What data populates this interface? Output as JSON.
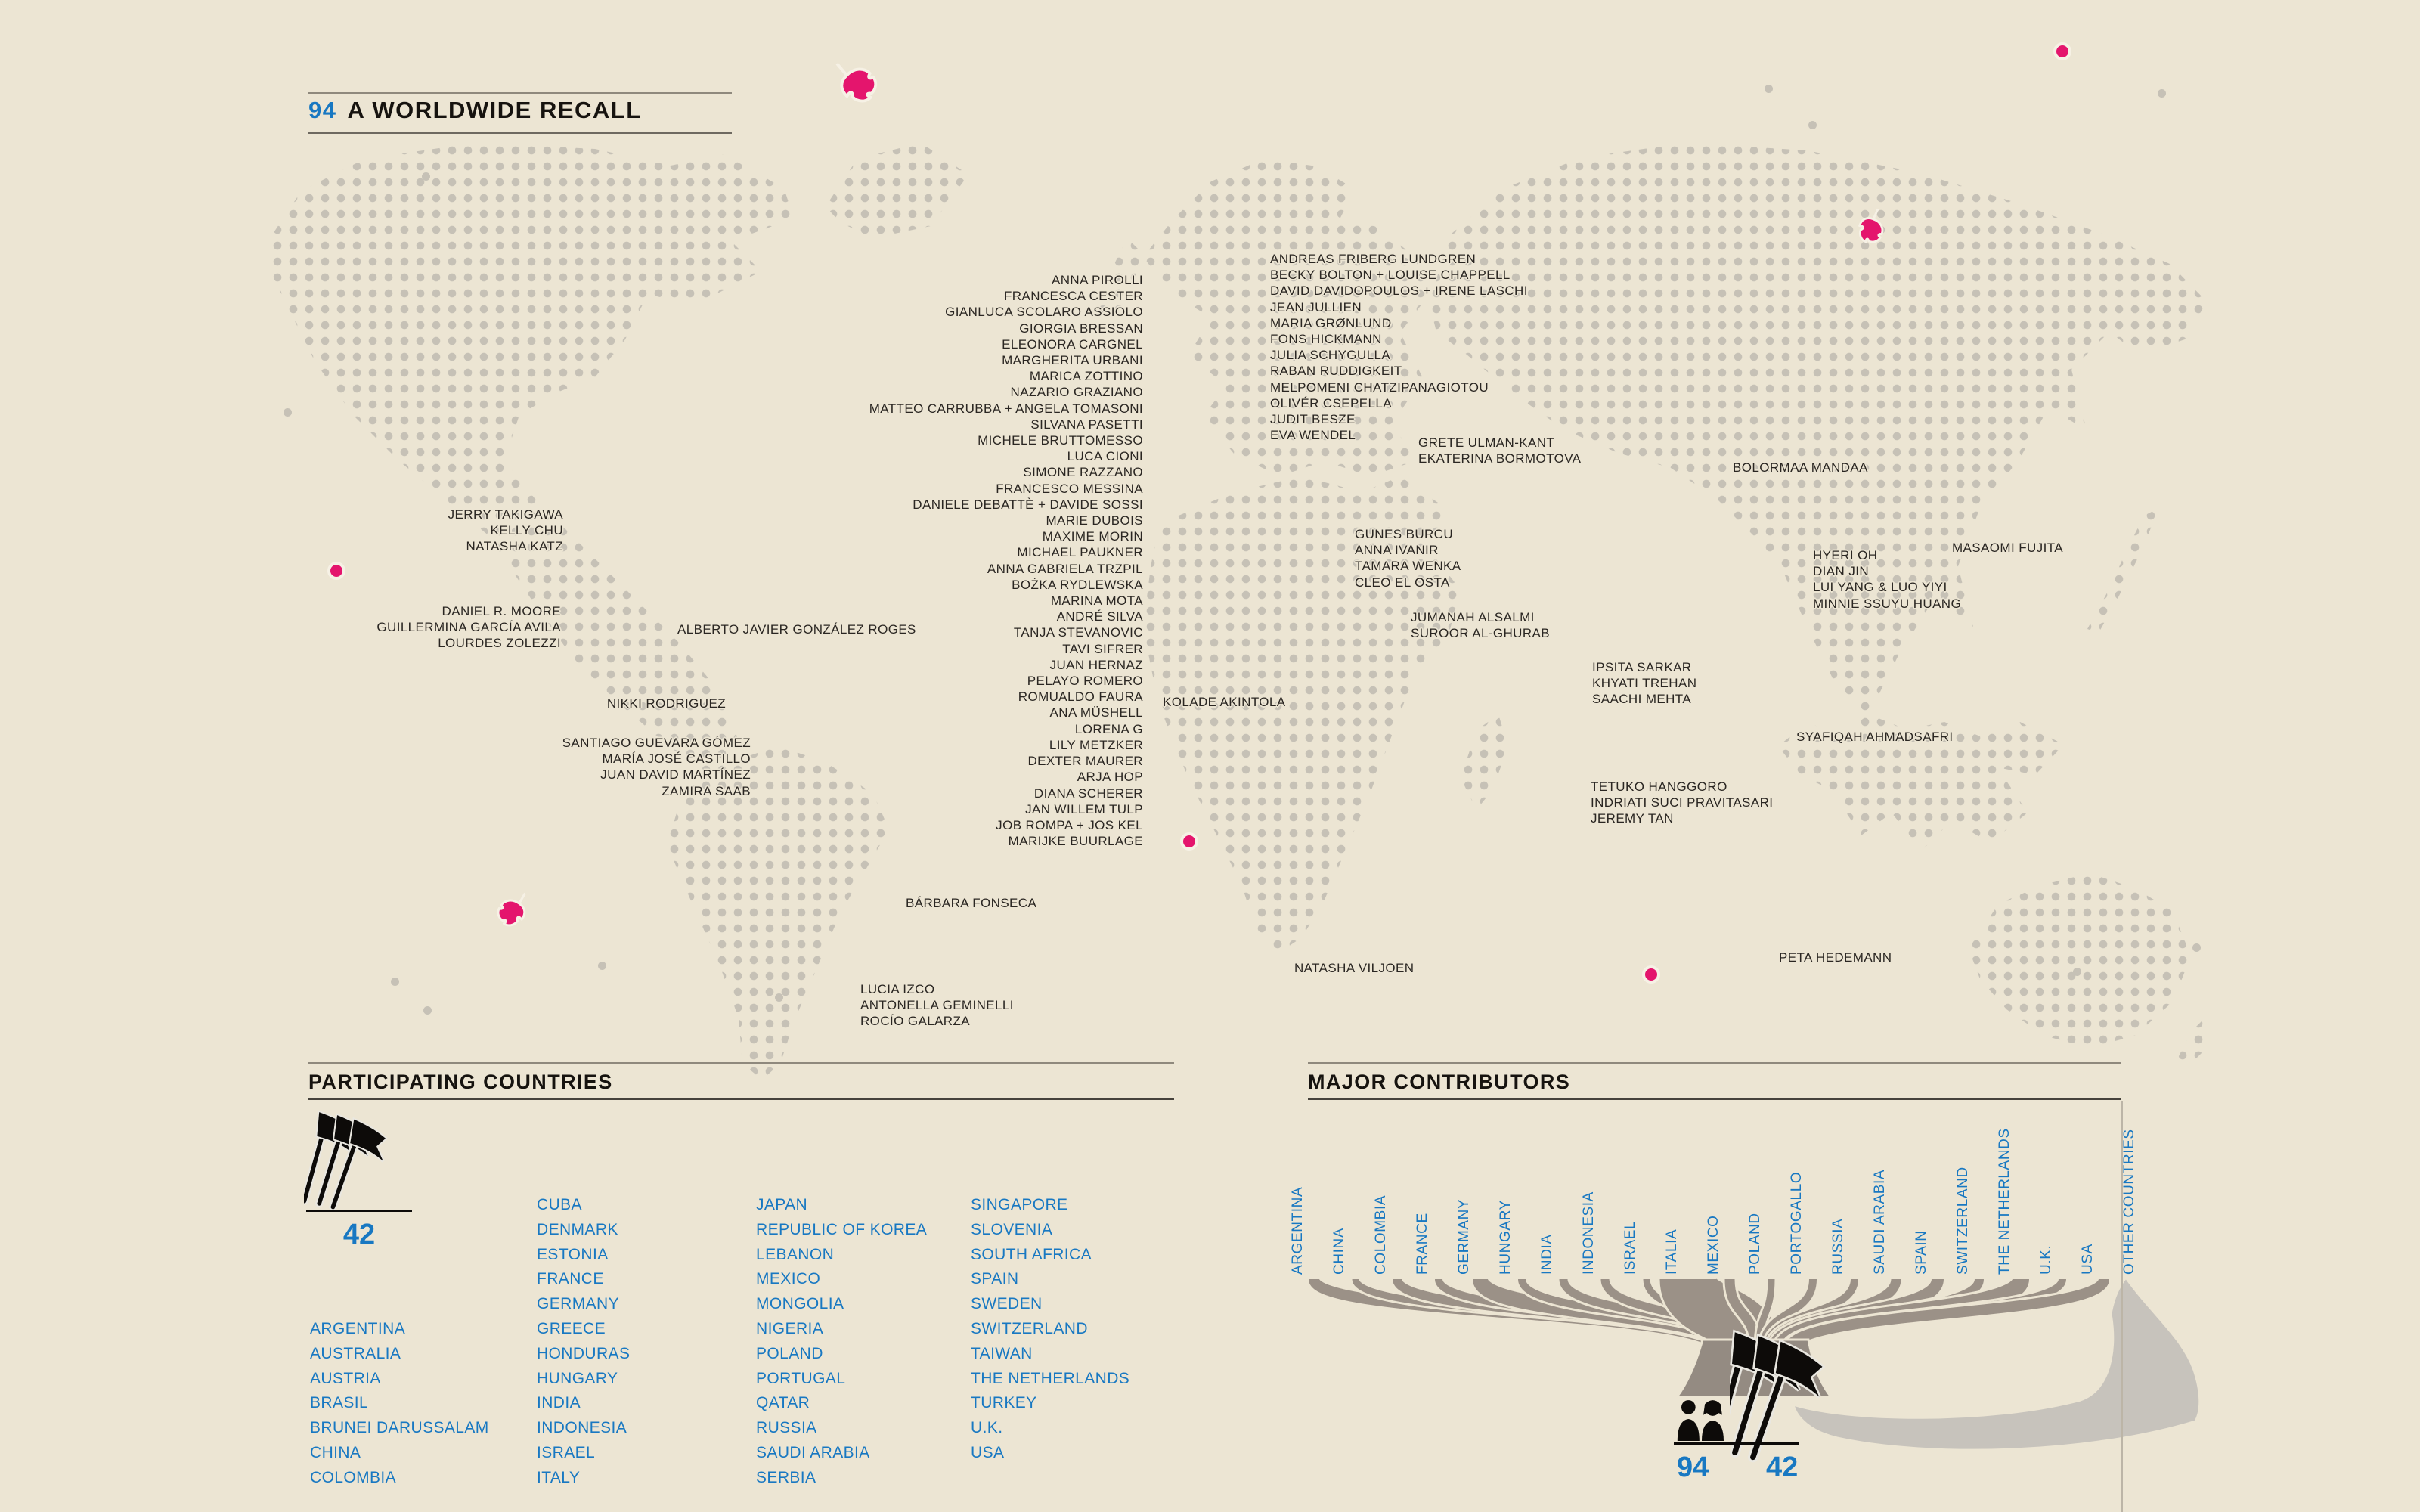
{
  "title": {
    "number": "94",
    "text": "A WORLDWIDE RECALL"
  },
  "colors": {
    "background": "#ece5d3",
    "dot_gray": "#c6c1b6",
    "accent_blue": "#1878c2",
    "accent_magenta": "#e4156d",
    "strand_gray": "#9b9187",
    "band_gray": "#c7c3bc"
  },
  "map_groups": [
    {
      "id": "g_europe",
      "lines": [
        "ANNA PIROLLI",
        "FRANCESCA CESTER",
        "GIANLUCA SCOLARO ASSIOLO",
        "GIORGIA BRESSAN",
        "ELEONORA CARGNEL",
        "MARGHERITA URBANI",
        "MARICA ZOTTINO",
        "NAZARIO GRAZIANO",
        "MATTEO CARRUBBA + ANGELA TOMASONI",
        "SILVANA PASETTI",
        "MICHELE BRUTTOMESSO",
        "LUCA CIONI",
        "SIMONE RAZZANO",
        "FRANCESCO MESSINA",
        "DANIELE DEBATTÈ + DAVIDE SOSSI",
        "MARIE DUBOIS",
        "MAXIME MORIN",
        "MICHAEL PAUKNER",
        "ANNA GABRIELA TRZPIL",
        "BOŻKA RYDLEWSKA",
        "MARINA MOTA",
        "ANDRÉ SILVA",
        "TANJA STEVANOVIC",
        "TAVI SIFRER",
        "JUAN HERNAZ",
        "PELAYO ROMERO",
        "ROMUALDO FAURA",
        "ANA MÜSHELL",
        "LORENA G",
        "LILY METZKER",
        "DEXTER MAURER",
        "ARJA HOP",
        "DIANA SCHERER",
        "JAN WILLEM TULP",
        "JOB ROMPA + JOS KEL",
        "MARIJKE BUURLAGE"
      ]
    },
    {
      "id": "g_north",
      "lines": [
        "ANDREAS FRIBERG LUNDGREN",
        "BECKY BOLTON + LOUISE CHAPPELL",
        "DAVID DAVIDOPOULOS + IRENE LASCHI",
        "JEAN JULLIEN",
        "MARIA GRØNLUND",
        "FONS HICKMANN",
        "JULIA SCHYGULLA",
        "RABAN RUDDIGKEIT",
        "MELPOMENI CHATZIPANAGIOTOU",
        "OLIVÉR CSEPELLA",
        "JUDIT BESZE",
        "EVA WENDEL"
      ]
    },
    {
      "id": "g_east",
      "lines": [
        "GRETE ULMAN-KANT",
        "EKATERINA BORMOTOVA"
      ]
    },
    {
      "id": "g_turkey",
      "lines": [
        "GUNES BURCU",
        "ANNA IVANIR",
        "TAMARA WENKA",
        "CLEO EL OSTA"
      ]
    },
    {
      "id": "g_mongolia",
      "lines": [
        "BOLORMAA MANDAA"
      ]
    },
    {
      "id": "g_eastasia",
      "lines": [
        "HYERI OH",
        "DIAN JIN",
        "LUI YANG & LUO YIYI",
        "MINNIE SSUYU HUANG"
      ]
    },
    {
      "id": "g_japan",
      "lines": [
        "MASAOMI FUJITA"
      ]
    },
    {
      "id": "g_uswest",
      "lines": [
        "JERRY TAKIGAWA",
        "KELLY CHU",
        "NATASHA KATZ"
      ]
    },
    {
      "id": "g_mexico",
      "lines": [
        "DANIEL R. MOORE",
        "GUILLERMINA GARCÍA AVILA",
        "LOURDES ZOLEZZI"
      ]
    },
    {
      "id": "g_cuba",
      "lines": [
        "ALBERTO JAVIER GONZÁLEZ ROGES"
      ]
    },
    {
      "id": "g_nikki",
      "lines": [
        "NIKKI RODRIGUEZ"
      ]
    },
    {
      "id": "g_colombia",
      "lines": [
        "SANTIAGO GUEVARA GÓMEZ",
        "MARÍA JOSÉ CASTILLO",
        "JUAN DAVID MARTÍNEZ",
        "ZAMIRA SAAB"
      ]
    },
    {
      "id": "g_nigeria",
      "lines": [
        "KOLADE AKINTOLA"
      ]
    },
    {
      "id": "g_arabia",
      "lines": [
        "JUMANAH ALSALMI",
        "SUROOR AL-GHURAB"
      ]
    },
    {
      "id": "g_india",
      "lines": [
        "IPSITA SARKAR",
        "KHYATI TREHAN",
        "SAACHI MEHTA"
      ]
    },
    {
      "id": "g_malaysia",
      "lines": [
        "SYAFIQAH AHMADSAFRI"
      ]
    },
    {
      "id": "g_indonesia",
      "lines": [
        "TETUKO HANGGORO",
        "INDRIATI SUCI PRAVITASARI",
        "JEREMY TAN"
      ]
    },
    {
      "id": "g_brazil",
      "lines": [
        "BÁRBARA FONSECA"
      ]
    },
    {
      "id": "g_argentina",
      "lines": [
        "LUCIA IZCO",
        "ANTONELLA GEMINELLI",
        "ROCÍO GALARZA"
      ]
    },
    {
      "id": "g_safrica",
      "lines": [
        "NATASHA VILJOEN"
      ]
    },
    {
      "id": "g_australia",
      "lines": [
        "PETA HEDEMANN"
      ]
    }
  ],
  "participating": {
    "heading": "PARTICIPATING COUNTRIES",
    "flag_count": "42",
    "columns": [
      [
        "ARGENTINA",
        "AUSTRALIA",
        "AUSTRIA",
        "BRASIL",
        "BRUNEI DARUSSALAM",
        "CHINA",
        "COLOMBIA"
      ],
      [
        "CUBA",
        "DENMARK",
        "ESTONIA",
        "FRANCE",
        "GERMANY",
        "GREECE",
        "HONDURAS",
        "HUNGARY",
        "INDIA",
        "INDONESIA",
        "ISRAEL",
        "ITALY"
      ],
      [
        "JAPAN",
        "REPUBLIC OF KOREA",
        "LEBANON",
        "MEXICO",
        "MONGOLIA",
        "NIGERIA",
        "POLAND",
        "PORTUGAL",
        "QATAR",
        "RUSSIA",
        "SAUDI ARABIA",
        "SERBIA"
      ],
      [
        "SINGAPORE",
        "SLOVENIA",
        "SOUTH AFRICA",
        "SPAIN",
        "SWEDEN",
        "SWITZERLAND",
        "TAIWAN",
        "THE NETHERLANDS",
        "TURKEY",
        "U.K.",
        "USA"
      ]
    ]
  },
  "major": {
    "heading": "MAJOR CONTRIBUTORS",
    "people_count": "94",
    "flag_count": "42",
    "countries": [
      {
        "name": "ARGENTINA",
        "width": 14
      },
      {
        "name": "CHINA",
        "width": 9
      },
      {
        "name": "COLOMBIA",
        "width": 12
      },
      {
        "name": "FRANCE",
        "width": 10
      },
      {
        "name": "GERMANY",
        "width": 20
      },
      {
        "name": "HUNGARY",
        "width": 10
      },
      {
        "name": "INDIA",
        "width": 11
      },
      {
        "name": "INDONESIA",
        "width": 11
      },
      {
        "name": "ISRAEL",
        "width": 9
      },
      {
        "name": "ITALIA",
        "width": 75
      },
      {
        "name": "MEXICO",
        "width": 13
      },
      {
        "name": "POLAND",
        "width": 9
      },
      {
        "name": "PORTOGALLO",
        "width": 10
      },
      {
        "name": "RUSSIA",
        "width": 10
      },
      {
        "name": "SAUDI ARABIA",
        "width": 13
      },
      {
        "name": "SPAIN",
        "width": 16
      },
      {
        "name": "SWITZERLAND",
        "width": 12
      },
      {
        "name": "THE NETHERLANDS",
        "width": 22
      },
      {
        "name": "U.K.",
        "width": 10
      },
      {
        "name": "USA",
        "width": 14
      },
      {
        "name": "OTHER COUNTRIES",
        "width": 90,
        "band": true
      }
    ]
  },
  "chart_data": [
    {
      "type": "table",
      "title": "PARTICIPATING COUNTRIES",
      "total": 42,
      "values": [
        "ARGENTINA",
        "AUSTRALIA",
        "AUSTRIA",
        "BRASIL",
        "BRUNEI DARUSSALAM",
        "CHINA",
        "COLOMBIA",
        "CUBA",
        "DENMARK",
        "ESTONIA",
        "FRANCE",
        "GERMANY",
        "GREECE",
        "HONDURAS",
        "HUNGARY",
        "INDIA",
        "INDONESIA",
        "ISRAEL",
        "ITALY",
        "JAPAN",
        "REPUBLIC OF KOREA",
        "LEBANON",
        "MEXICO",
        "MONGOLIA",
        "NIGERIA",
        "POLAND",
        "PORTUGAL",
        "QATAR",
        "RUSSIA",
        "SAUDI ARABIA",
        "SERBIA",
        "SINGAPORE",
        "SLOVENIA",
        "SOUTH AFRICA",
        "SPAIN",
        "SWEDEN",
        "SWITZERLAND",
        "TAIWAN",
        "THE NETHERLANDS",
        "TURKEY",
        "U.K.",
        "USA"
      ]
    },
    {
      "type": "area",
      "title": "MAJOR CONTRIBUTORS",
      "note": "fan diagram; strand width encodes relative number of contributors per country; 94 contributors from 42 countries",
      "categories": [
        "ARGENTINA",
        "CHINA",
        "COLOMBIA",
        "FRANCE",
        "GERMANY",
        "HUNGARY",
        "INDIA",
        "INDONESIA",
        "ISRAEL",
        "ITALIA",
        "MEXICO",
        "POLAND",
        "PORTOGALLO",
        "RUSSIA",
        "SAUDI ARABIA",
        "SPAIN",
        "SWITZERLAND",
        "THE NETHERLANDS",
        "U.K.",
        "USA",
        "OTHER COUNTRIES"
      ],
      "values": [
        14,
        9,
        12,
        10,
        20,
        10,
        11,
        11,
        9,
        75,
        13,
        9,
        10,
        10,
        13,
        16,
        12,
        22,
        10,
        14,
        90
      ],
      "totals": {
        "contributors": 94,
        "countries": 42
      }
    }
  ]
}
